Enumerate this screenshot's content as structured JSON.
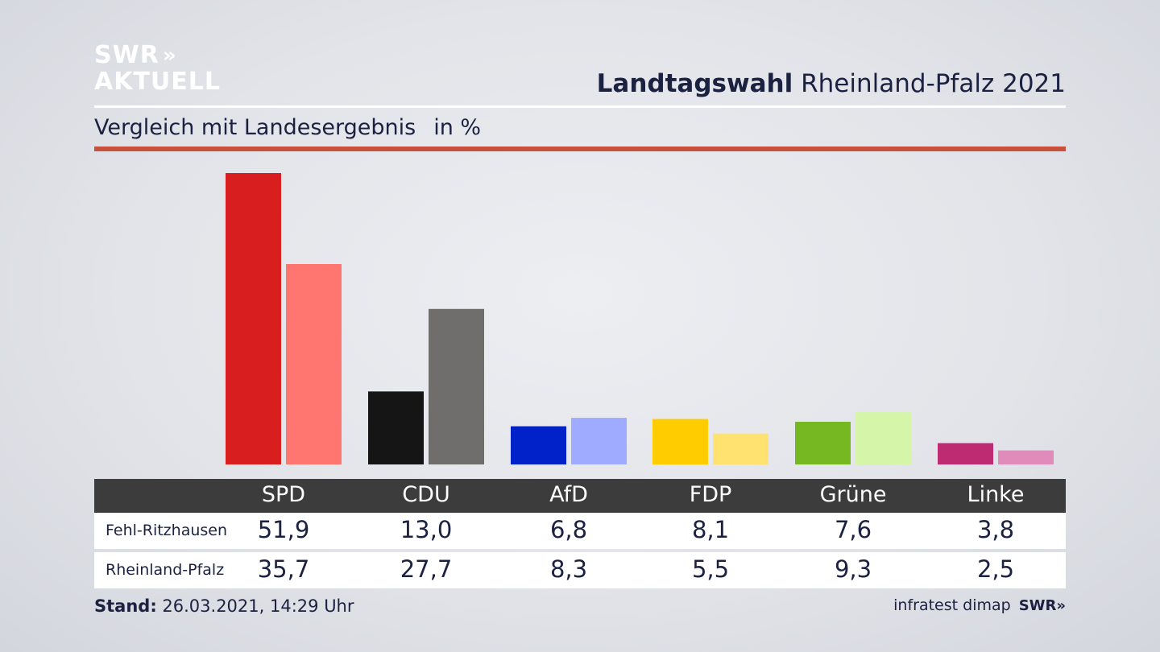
{
  "logo": {
    "line1": "SWR",
    "arrows": "»",
    "line2": "AKTUELL"
  },
  "header": {
    "title_bold": "Landtagswahl",
    "title_rest": "Rheinland-Pfalz 2021"
  },
  "subtitle": {
    "text": "Vergleich mit Landesergebnis",
    "unit": "in %"
  },
  "table": {
    "rows": [
      {
        "label": "Fehl-Ritzhausen",
        "values": [
          "51,9",
          "13,0",
          "6,8",
          "8,1",
          "7,6",
          "3,8"
        ]
      },
      {
        "label": "Rheinland-Pfalz",
        "values": [
          "35,7",
          "27,7",
          "8,3",
          "5,5",
          "9,3",
          "2,5"
        ]
      }
    ]
  },
  "footer": {
    "stand_label": "Stand:",
    "stand_value": "26.03.2021, 14:29 Uhr",
    "source": "infratest dimap",
    "brand": "SWR»"
  },
  "chart_data": {
    "type": "bar",
    "categories": [
      "SPD",
      "CDU",
      "AfD",
      "FDP",
      "Grüne",
      "Linke"
    ],
    "series": [
      {
        "name": "Fehl-Ritzhausen",
        "values": [
          51.9,
          13.0,
          6.8,
          8.1,
          7.6,
          3.8
        ]
      },
      {
        "name": "Rheinland-Pfalz",
        "values": [
          35.7,
          27.7,
          8.3,
          5.5,
          9.3,
          2.5
        ]
      }
    ],
    "colors": {
      "series1": [
        "#d81e1e",
        "#151515",
        "#0022c8",
        "#ffcc00",
        "#76b822",
        "#be2b73"
      ],
      "series2": [
        "#ff7670",
        "#6f6e6d",
        "#9eabff",
        "#ffe270",
        "#d5f6a9",
        "#e08cba"
      ]
    },
    "ylim": [
      0,
      52
    ],
    "grid": false,
    "legend": "none"
  }
}
